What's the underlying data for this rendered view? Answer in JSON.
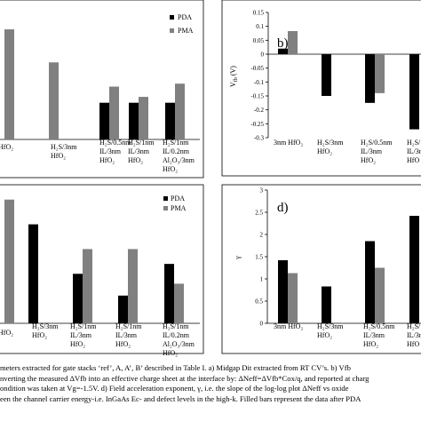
{
  "chart_data": [
    {
      "type": "bar",
      "panel": "a",
      "categories": [
        "HfO2",
        "H2S/3nm HfO2",
        "H2S/0.5nm IL/3nm HfO2",
        "H2S/1nm IL/3nm HfO2",
        "H2S/1nm IL/0.2nm Al2O3/3nm HfO2"
      ],
      "series": [
        {
          "name": "PDA",
          "values": [
            null,
            null,
            0.5,
            0.5,
            0.5
          ]
        },
        {
          "name": "PMA",
          "values": [
            1.5,
            1.05,
            0.72,
            0.58,
            0.76
          ]
        }
      ],
      "legend": "top-right",
      "ylim": [
        0,
        1.9
      ],
      "colors": {
        "PDA": "#000000",
        "PMA": "#808080"
      }
    },
    {
      "type": "bar",
      "panel": "b",
      "categories": [
        "3nm HfO2",
        "H2S/3nm HfO2",
        "H2S/0.5nm IL/3nm HfO2",
        "H2S/1nm IL/3nm HfO2"
      ],
      "series": [
        {
          "name": "PDA",
          "values": [
            0.02,
            -0.15,
            -0.175,
            -0.27
          ]
        },
        {
          "name": "PMA",
          "values": [
            0.083,
            null,
            -0.14,
            null
          ]
        }
      ],
      "ylim": [
        -0.3,
        0.15
      ],
      "yticks": [
        "0.15",
        "0.1",
        "0.05",
        "0",
        "-0.05",
        "-0.1",
        "-0.15",
        "-0.2",
        "-0.25",
        "-0.3"
      ],
      "ylabel": "V_fb (V)",
      "colors": {
        "PDA": "#000000",
        "PMA": "#808080"
      }
    },
    {
      "type": "bar",
      "panel": "c",
      "categories": [
        "HfO2",
        "H2S/3nm HfO2",
        "H2S/1nm IL/3nm HfO2",
        "H2S/1nm IL/3nm HfO2",
        "H2S/1nm IL/0.2nm Al2O3/3nm HfO2"
      ],
      "series": [
        {
          "name": "PDA",
          "values": [
            null,
            1.0,
            0.5,
            0.28,
            0.6
          ]
        },
        {
          "name": "PMA",
          "values": [
            1.25,
            null,
            0.75,
            0.75,
            0.4
          ]
        }
      ],
      "legend": "top-right",
      "ylim": [
        0,
        1.4
      ],
      "colors": {
        "PDA": "#000000",
        "PMA": "#808080"
      }
    },
    {
      "type": "bar",
      "panel": "d",
      "categories": [
        "3nm HfO2",
        "H2S/3nm HfO2",
        "H2S/0.5nm IL/3nm HfO2",
        "H2S/1nm IL/3nm HfO2"
      ],
      "series": [
        {
          "name": "PDA",
          "values": [
            1.42,
            0.83,
            1.85,
            2.42
          ]
        },
        {
          "name": "PMA",
          "values": [
            1.13,
            null,
            1.25,
            null
          ]
        }
      ],
      "ylim": [
        0,
        3
      ],
      "yticks": [
        "3",
        "2.5",
        "2",
        "1.5",
        "1",
        "0.5",
        "0"
      ],
      "ylabel": "γ",
      "colors": {
        "PDA": "#000000",
        "PMA": "#808080"
      }
    }
  ],
  "labels": {
    "panel_b": "b)",
    "panel_d": "d)",
    "legend_pda": "PDA",
    "legend_pma": "PMA",
    "a_cat0": "HfO₂",
    "a_cat1": [
      "H₂S/3nm",
      "HfO₂"
    ],
    "a_cat2": [
      "H₂S/0.5nm",
      "IL/3nm",
      "HfO₂"
    ],
    "a_cat3": [
      "H₂S/1nm",
      "IL/3nm",
      "HfO₂"
    ],
    "a_cat4": [
      "H₂S/1nm",
      "IL/0.2nm",
      "Al₂O₃/3nm",
      "HfO₂"
    ],
    "b_cat0": "3nm HfO₂",
    "b_cat1": [
      "H₂S/3nm",
      "HfO₂"
    ],
    "b_cat2": [
      "H₂S/0.5nm",
      "IL/3nm",
      "HfO₂"
    ],
    "b_cat3": [
      "H₂S/1",
      "IL/3n",
      "HfO"
    ],
    "c_cat0": "HfO₂",
    "c_cat1": [
      "H₂S/3nm",
      "HfO₂"
    ],
    "c_cat2": [
      "H₂S/1nm",
      "IL/3nm",
      "HfO₂"
    ],
    "c_cat3": [
      "H₂S/1nm",
      "IL/3nm",
      "HfO₂"
    ],
    "c_cat4": [
      "H₂S/1nm",
      "IL/0.2nm",
      "Al₂O₃/3nm",
      "HfO₂"
    ],
    "d_cat0": "3nm HfO₂",
    "d_cat1": [
      "H₂S/3nm",
      "HfO₂"
    ],
    "d_cat2": [
      "H₂S/0.5nm",
      "IL/3nm",
      "HfO₂"
    ],
    "d_cat3": [
      "H₂S/1",
      "IL/3n",
      "HfO"
    ]
  },
  "caption": [
    "meters extracted for gate stacks ‘ref’, A, A’, B’ described in Table I. a) Midgap Dit extracted from RT CV’s. b) Vfb",
    "nverting the measured ΔVfb into an effective charge sheet at the interface by: ΔNeff=ΔVfb*Cox/q, and reported at charg",
    "ondition was taken at Vg=-1.5V. d) Field acceleration exponent, γ, i.e. the slope of the log-log plot ΔNeff vs oxide",
    "een the channel carrier energy-i.e. InGaAs Ec- and defect levels in the high-k. Filled bars represent the data after PDA"
  ]
}
